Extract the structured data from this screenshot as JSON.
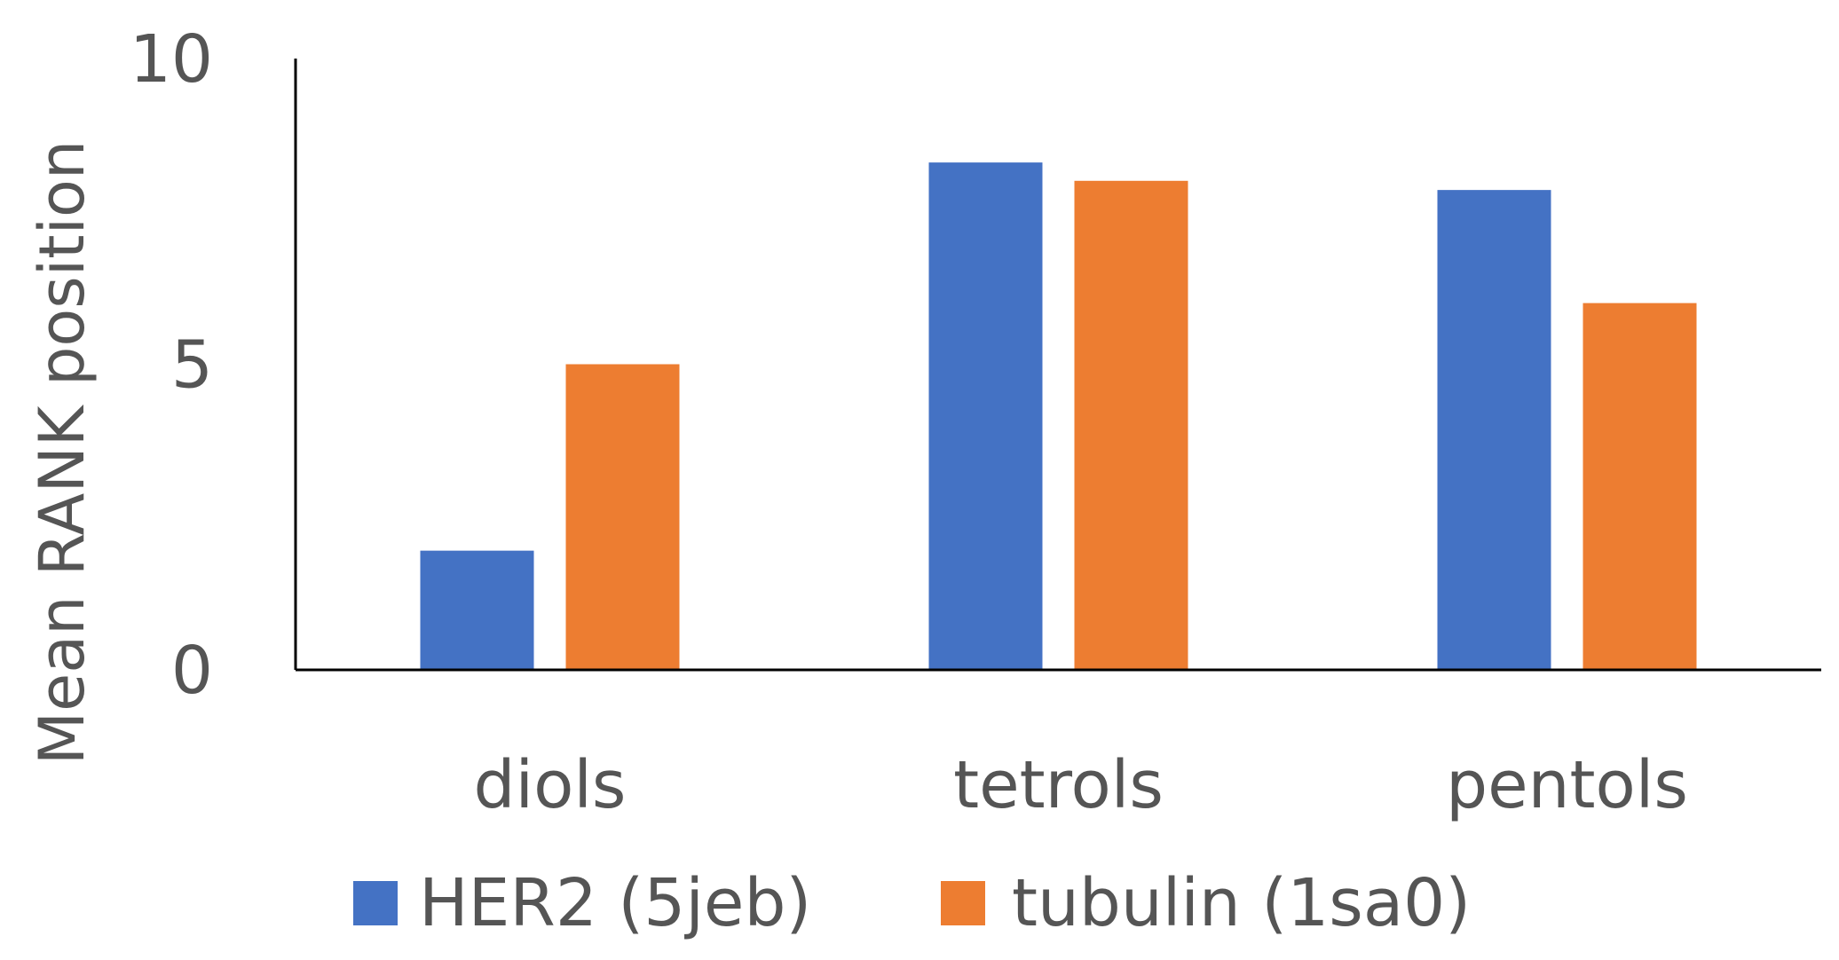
{
  "chart_data": {
    "type": "bar",
    "title": "",
    "xlabel": "",
    "ylabel": "Mean RANK position",
    "categories": [
      "diols",
      "tetrols",
      "pentols"
    ],
    "series": [
      {
        "name": "HER2 (5jeb)",
        "color": "#4472C4",
        "values": [
          1.95,
          8.3,
          7.85
        ]
      },
      {
        "name": "tubulin (1sa0)",
        "color": "#ED7D31",
        "values": [
          5.0,
          8.0,
          6.0
        ]
      }
    ],
    "ylim": [
      0,
      10
    ],
    "yticks": [
      "0",
      "5",
      "10"
    ],
    "grid": false,
    "legend_position": "bottom"
  }
}
